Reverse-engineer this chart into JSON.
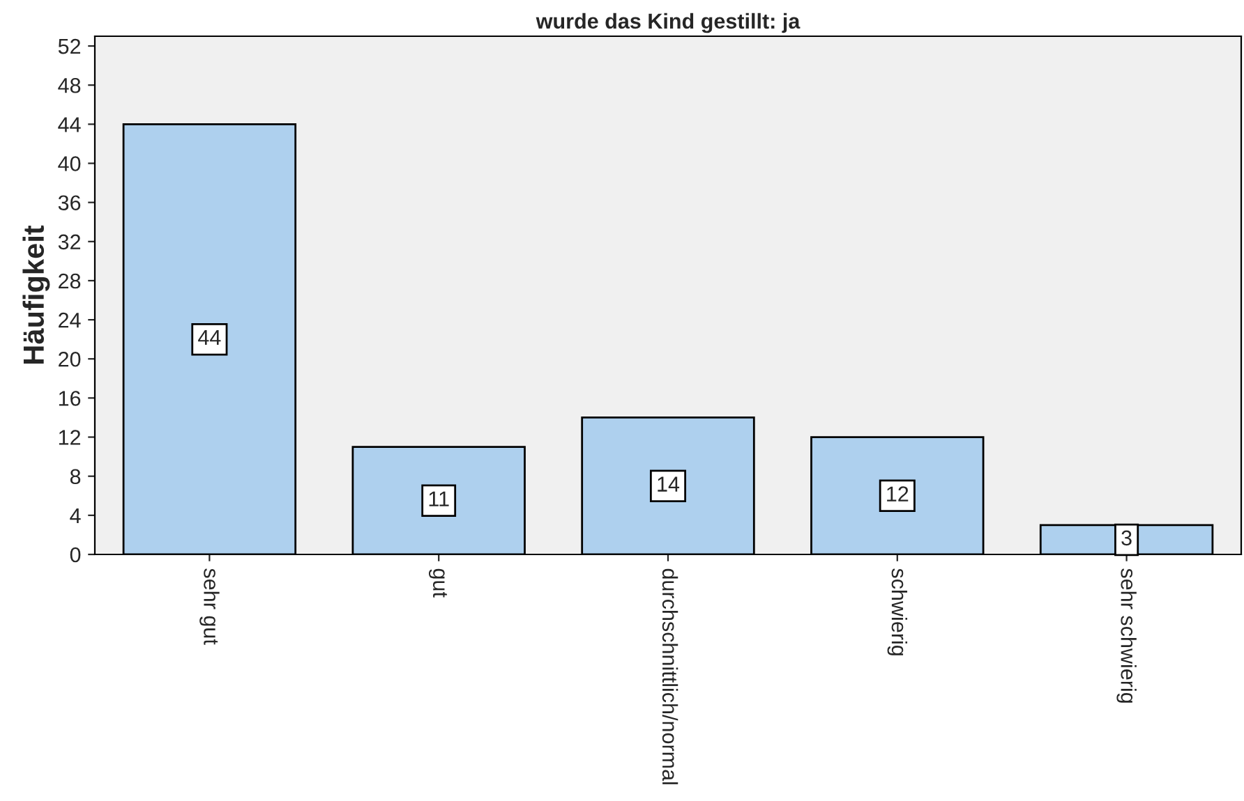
{
  "chart_data": {
    "type": "bar",
    "title": "wurde das Kind gestillt: ja",
    "ylabel": "Häufigkeit",
    "categories": [
      "sehr gut",
      "gut",
      "durchschnittlich/normal",
      "schwierig",
      "sehr schwierig"
    ],
    "values": [
      44,
      11,
      14,
      12,
      3
    ],
    "color": "#aed0ee",
    "ylim": [
      0,
      53
    ],
    "yticks": [
      0,
      4,
      8,
      12,
      16,
      20,
      24,
      28,
      32,
      36,
      40,
      44,
      48,
      52
    ],
    "data_labels": true,
    "grid": false,
    "legend": false
  }
}
